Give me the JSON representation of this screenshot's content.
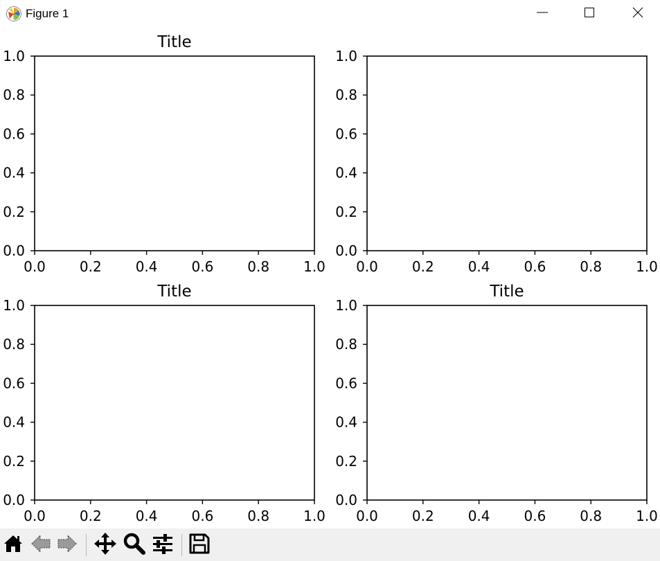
{
  "window": {
    "title": "Figure 1",
    "app_icon": "matplotlib-logo-icon",
    "controls": [
      "minimize-icon",
      "maximize-icon",
      "close-icon"
    ]
  },
  "toolbar": {
    "buttons": [
      {
        "name": "home-button",
        "icon": "home-icon"
      },
      {
        "name": "back-button",
        "icon": "back-arrow-icon"
      },
      {
        "name": "forward-button",
        "icon": "forward-arrow-icon"
      },
      {
        "name": "pan-button",
        "icon": "move-arrows-icon"
      },
      {
        "name": "zoom-button",
        "icon": "magnifier-icon"
      },
      {
        "name": "subplots-button",
        "icon": "sliders-icon"
      },
      {
        "name": "save-button",
        "icon": "floppy-disk-icon"
      }
    ]
  },
  "chart_data": [
    {
      "type": "line",
      "title": "Title",
      "xlabel": "",
      "ylabel": "",
      "xlim": [
        0.0,
        1.0
      ],
      "ylim": [
        0.0,
        1.0
      ],
      "xticks": [
        "0.0",
        "0.2",
        "0.4",
        "0.6",
        "0.8",
        "1.0"
      ],
      "yticks": [
        "0.0",
        "0.2",
        "0.4",
        "0.6",
        "0.8",
        "1.0"
      ],
      "series": [],
      "grid": false
    },
    {
      "type": "line",
      "title": "",
      "xlabel": "",
      "ylabel": "",
      "xlim": [
        0.0,
        1.0
      ],
      "ylim": [
        0.0,
        1.0
      ],
      "xticks": [
        "0.0",
        "0.2",
        "0.4",
        "0.6",
        "0.8",
        "1.0"
      ],
      "yticks": [
        "0.0",
        "0.2",
        "0.4",
        "0.6",
        "0.8",
        "1.0"
      ],
      "series": [],
      "grid": false
    },
    {
      "type": "line",
      "title": "Title",
      "xlabel": "",
      "ylabel": "",
      "xlim": [
        0.0,
        1.0
      ],
      "ylim": [
        0.0,
        1.0
      ],
      "xticks": [
        "0.0",
        "0.2",
        "0.4",
        "0.6",
        "0.8",
        "1.0"
      ],
      "yticks": [
        "0.0",
        "0.2",
        "0.4",
        "0.6",
        "0.8",
        "1.0"
      ],
      "series": [],
      "grid": false
    },
    {
      "type": "line",
      "title": "Title",
      "xlabel": "",
      "ylabel": "",
      "xlim": [
        0.0,
        1.0
      ],
      "ylim": [
        0.0,
        1.0
      ],
      "xticks": [
        "0.0",
        "0.2",
        "0.4",
        "0.6",
        "0.8",
        "1.0"
      ],
      "yticks": [
        "0.0",
        "0.2",
        "0.4",
        "0.6",
        "0.8",
        "1.0"
      ],
      "series": [],
      "grid": false
    }
  ]
}
